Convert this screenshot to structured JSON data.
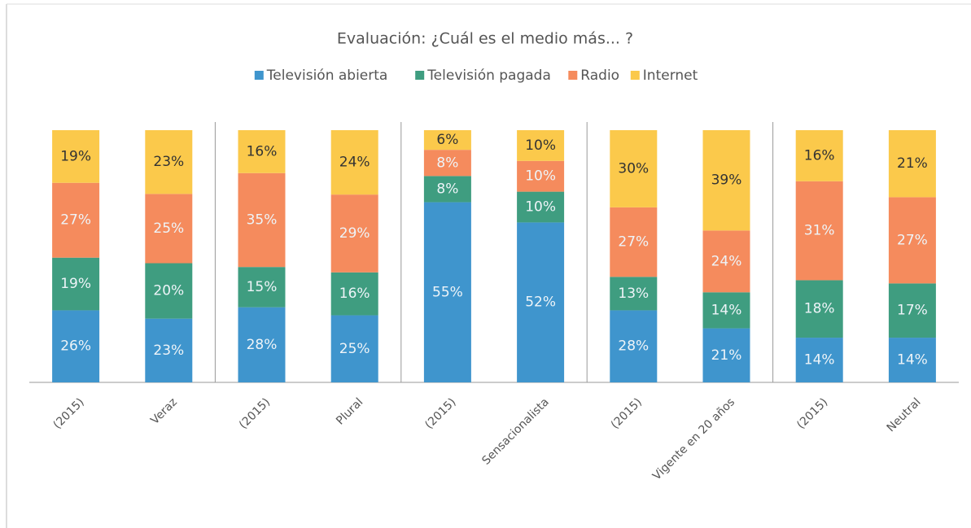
{
  "chart_data": {
    "type": "bar",
    "stacked": true,
    "normalized": true,
    "title": "Evaluación: ¿Cuál es el medio más... ?",
    "categories": [
      "(2015)",
      "Veraz",
      "(2015)",
      "Plural",
      "(2015)",
      "Sensacionalista",
      "(2015)",
      "Vigente en 20 años",
      "(2015)",
      "Neutral"
    ],
    "series": [
      {
        "name": "Televisión abierta",
        "color": "#3f95cd",
        "values": [
          26,
          23,
          28,
          25,
          55,
          52,
          28,
          21,
          14,
          14
        ],
        "value_labels": [
          "26%",
          "23%",
          "28%",
          "25%",
          "55%",
          "52%",
          "28%",
          "21%",
          "14%",
          "14%"
        ]
      },
      {
        "name": "Televisión pagada",
        "color": "#3f9d80",
        "values": [
          19,
          20,
          15,
          16,
          8,
          10,
          13,
          14,
          18,
          17
        ],
        "value_labels": [
          "19%",
          "20%",
          "15%",
          "16%",
          "8%",
          "10%",
          "13%",
          "14%",
          "18%",
          "17%"
        ]
      },
      {
        "name": "Radio",
        "color": "#f58b5d",
        "values": [
          27,
          25,
          35,
          29,
          8,
          10,
          27,
          24,
          31,
          27
        ],
        "value_labels": [
          "27%",
          "25%",
          "35%",
          "29%",
          "8%",
          "10%",
          "27%",
          "24%",
          "31%",
          "27%"
        ]
      },
      {
        "name": "Internet",
        "color": "#fbc94b",
        "values": [
          19,
          23,
          16,
          24,
          6,
          10,
          30,
          39,
          16,
          21
        ],
        "value_labels": [
          "19%",
          "23%",
          "16%",
          "24%",
          "6%",
          "10%",
          "30%",
          "39%",
          "16%",
          "21%"
        ]
      }
    ],
    "legend": "top"
  }
}
